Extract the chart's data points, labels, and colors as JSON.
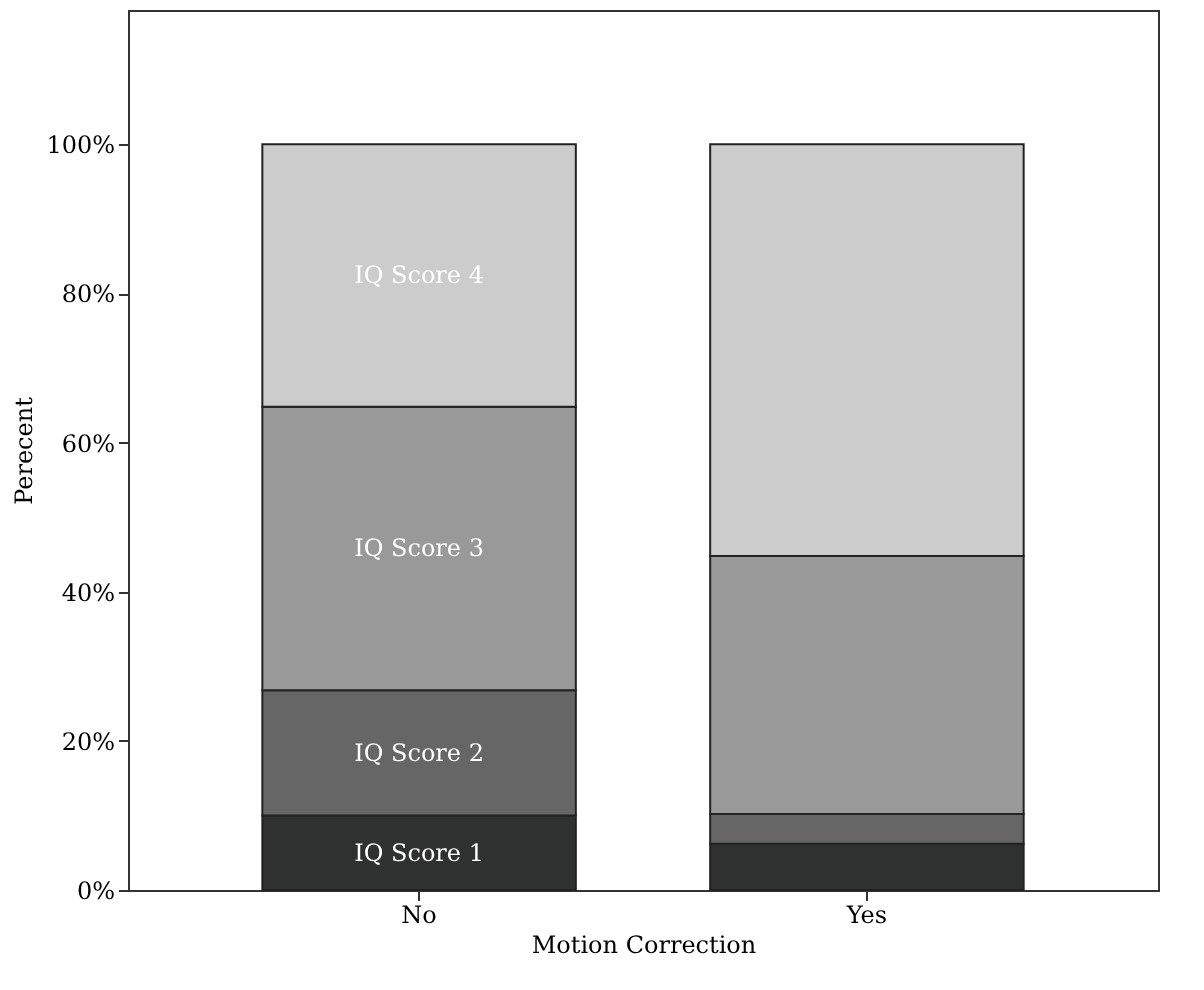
{
  "chart_data": {
    "type": "bar",
    "stacked": true,
    "xlabel": "Motion Correction",
    "ylabel": "Perecent",
    "categories": [
      "No",
      "Yes"
    ],
    "series": [
      {
        "name": "IQ Score 1",
        "color": "#2f3030",
        "values": [
          10.0,
          6.2
        ]
      },
      {
        "name": "IQ Score 2",
        "color": "#666666",
        "values": [
          16.8,
          4.0
        ]
      },
      {
        "name": "IQ Score 3",
        "color": "#999999",
        "values": [
          38.0,
          34.6
        ]
      },
      {
        "name": "IQ Score 4",
        "color": "#cccccc",
        "values": [
          35.2,
          55.2
        ]
      }
    ],
    "ylim": [
      0,
      118
    ],
    "yticks": [
      {
        "value": 0,
        "label": "0%"
      },
      {
        "value": 20,
        "label": "20%"
      },
      {
        "value": 40,
        "label": "40%"
      },
      {
        "value": 60,
        "label": "60%"
      },
      {
        "value": 80,
        "label": "80%"
      },
      {
        "value": 100,
        "label": "100%"
      }
    ],
    "grid": false
  }
}
